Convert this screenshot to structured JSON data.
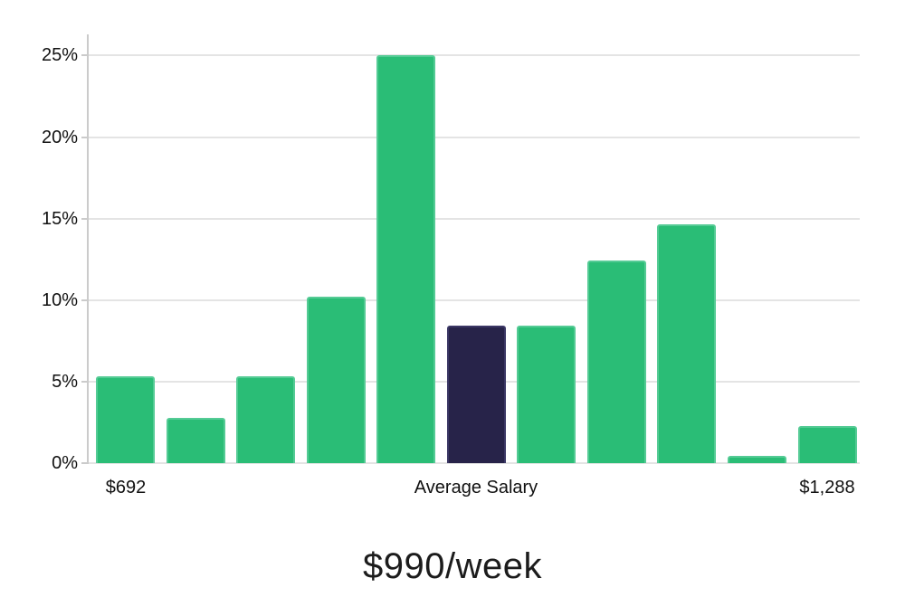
{
  "chart_data": {
    "type": "bar",
    "title": "$990/week",
    "caption": "$990/week",
    "xlabel": "",
    "ylabel": "",
    "unit": "%",
    "values": [
      5.35,
      2.75,
      5.35,
      10.2,
      25.0,
      8.45,
      8.45,
      12.45,
      14.65,
      0.45,
      2.25
    ],
    "highlight_index": 5,
    "yticks": [
      0,
      5,
      10,
      15,
      20,
      25
    ],
    "ytick_labels": [
      "0%",
      "5%",
      "10%",
      "15%",
      "20%",
      "25%"
    ],
    "ylim": [
      0,
      26.3
    ],
    "grid": true,
    "legend": "none",
    "xtick_labels": [
      {
        "bar_index": 0,
        "text": "$692"
      },
      {
        "bar_index": 5,
        "text": "Average Salary"
      },
      {
        "bar_index": 10,
        "text": "$1,288"
      }
    ],
    "colors": {
      "bar": "#2abd76",
      "bar_border": "#55cb95",
      "highlight": "#272349",
      "highlight_border": "#3b3765",
      "gridline": "#e4e4e4",
      "axis": "#cbcbcb",
      "tick_label": "#111111",
      "caption": "#1c1c1c"
    }
  }
}
